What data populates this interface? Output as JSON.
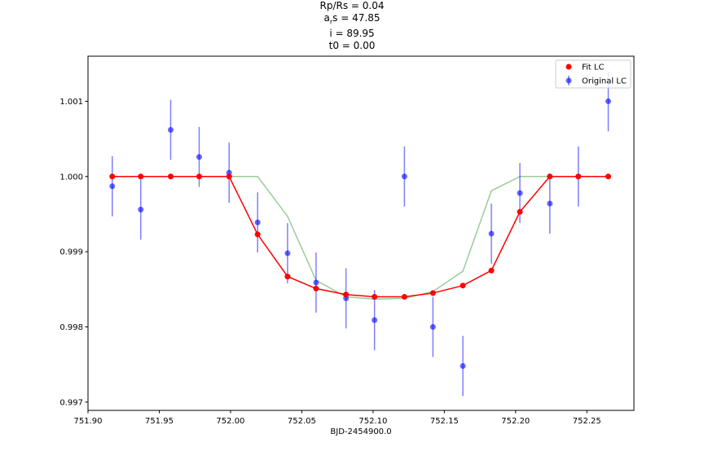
{
  "chart_data": {
    "type": "scatter",
    "title_lines": [
      {
        "pre": "Rp/Rs = 0.04",
        "sub": "",
        "post": ""
      },
      {
        "pre": "a",
        "sub": "r",
        "post": "s = 47.85"
      },
      {
        "pre": "i = 89.95",
        "sub": "",
        "post": ""
      },
      {
        "pre": "t0 = 0.00",
        "sub": "",
        "post": ""
      }
    ],
    "xlabel": "BJD-2454900.0",
    "ylabel": "",
    "xlim": [
      751.9,
      752.283
    ],
    "ylim": [
      0.99689,
      1.0016
    ],
    "x_ticks": [
      751.9,
      751.95,
      752.0,
      752.05,
      752.1,
      752.15,
      752.2,
      752.25
    ],
    "x_tick_labels": [
      "751.90",
      "751.95",
      "752.00",
      "752.05",
      "752.10",
      "752.15",
      "752.20",
      "752.25"
    ],
    "y_ticks": [
      0.997,
      0.998,
      0.999,
      1.0,
      1.001
    ],
    "y_tick_labels": [
      "0.997",
      "0.998",
      "0.999",
      "1.000",
      "1.001"
    ],
    "grid": false,
    "legend_position": "top-right",
    "colors": {
      "fit": "#ff0000",
      "original": "#0000ff",
      "model": "#008000"
    },
    "series": [
      {
        "name": "Fit LC",
        "x": [
          751.917,
          751.937,
          751.958,
          751.978,
          751.999,
          752.019,
          752.04,
          752.06,
          752.081,
          752.101,
          752.122,
          752.142,
          752.163,
          752.183,
          752.203,
          752.224,
          752.244,
          752.265
        ],
        "y": [
          1.0,
          1.0,
          1.0,
          1.0,
          1.0,
          0.99923,
          0.99867,
          0.99851,
          0.99843,
          0.9984,
          0.9984,
          0.99845,
          0.99855,
          0.99875,
          0.99953,
          1.0,
          1.0,
          1.0
        ]
      },
      {
        "name": "Original LC",
        "x": [
          751.917,
          751.937,
          751.958,
          751.978,
          751.999,
          752.019,
          752.04,
          752.06,
          752.081,
          752.101,
          752.122,
          752.142,
          752.163,
          752.183,
          752.203,
          752.224,
          752.244,
          752.265
        ],
        "y": [
          0.99987,
          0.99956,
          1.00062,
          1.00026,
          1.00005,
          0.99939,
          0.99898,
          0.99859,
          0.99838,
          0.99809,
          1.0,
          0.998,
          0.99748,
          0.99924,
          0.99978,
          0.99964,
          1.0,
          1.001
        ],
        "yerr": [
          0.0004,
          0.0004,
          0.0004,
          0.0004,
          0.0004,
          0.0004,
          0.0004,
          0.0004,
          0.0004,
          0.0004,
          0.0004,
          0.0004,
          0.0004,
          0.0004,
          0.0004,
          0.0004,
          0.0004,
          0.0004
        ]
      },
      {
        "x": [
          751.917,
          751.937,
          751.958,
          751.978,
          751.999,
          752.019,
          752.04,
          752.06,
          752.081,
          752.101,
          752.122,
          752.142,
          752.163,
          752.183,
          752.203,
          752.224,
          752.244,
          752.265
        ],
        "y": [
          1.0,
          1.0,
          1.0,
          1.0,
          1.0,
          1.0,
          0.99947,
          0.99862,
          0.9984,
          0.99837,
          0.99838,
          0.99847,
          0.99874,
          0.99981,
          1.0,
          1.0,
          1.0,
          1.0
        ]
      }
    ]
  }
}
